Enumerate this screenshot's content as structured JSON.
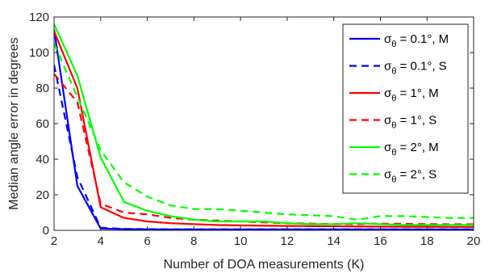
{
  "chart_data": {
    "type": "line",
    "title": "",
    "xlabel": "Number of DOA measurements (K)",
    "ylabel": "Median angle error in degrees",
    "xlim": [
      2,
      20
    ],
    "ylim": [
      0,
      120
    ],
    "xticks": [
      2,
      4,
      6,
      8,
      10,
      12,
      14,
      16,
      18,
      20
    ],
    "yticks": [
      0,
      20,
      40,
      60,
      80,
      100,
      120
    ],
    "grid": false,
    "legend_position": "top-right",
    "x": [
      2,
      3,
      4,
      5,
      6,
      7,
      8,
      9,
      10,
      11,
      12,
      13,
      14,
      15,
      16,
      17,
      18,
      19,
      20
    ],
    "series": [
      {
        "name": "σθ = 0.1°, M",
        "legend_sym": "σ",
        "legend_sub": "θ",
        "legend_rest": " = 0.1°, M",
        "color": "#0000ff",
        "dash": "solid",
        "values": [
          113,
          25,
          1,
          0.7,
          0.6,
          0.5,
          0.5,
          0.5,
          0.5,
          0.5,
          0.5,
          0.5,
          0.5,
          0.5,
          0.5,
          0.5,
          0.5,
          0.5,
          0.5
        ]
      },
      {
        "name": "σθ = 0.1°, S",
        "legend_sym": "σ",
        "legend_sub": "θ",
        "legend_rest": " = 0.1°, S",
        "color": "#0000ff",
        "dash": "dashed",
        "values": [
          93,
          30,
          1.5,
          0.8,
          0.7,
          0.6,
          0.6,
          0.6,
          0.6,
          0.6,
          0.6,
          0.6,
          0.6,
          0.6,
          0.6,
          0.6,
          0.6,
          0.6,
          0.6
        ]
      },
      {
        "name": "σθ = 1°, M",
        "legend_sym": "σ",
        "legend_sub": "θ",
        "legend_rest": " = 1°, M",
        "color": "#ff0000",
        "dash": "solid",
        "values": [
          112,
          80,
          13,
          7,
          5,
          4,
          3.5,
          3,
          2.8,
          2.6,
          2.5,
          2.4,
          2.3,
          2.2,
          2.1,
          2.0,
          2.0,
          1.9,
          1.9
        ]
      },
      {
        "name": "σθ = 1°, S",
        "legend_sym": "σ",
        "legend_sub": "θ",
        "legend_rest": " = 1°, S",
        "color": "#ff0000",
        "dash": "dashed",
        "values": [
          88,
          72,
          15,
          10,
          9,
          7,
          6,
          5.5,
          5,
          4.5,
          4,
          3.8,
          3.5,
          3.5,
          3.8,
          3.6,
          3.5,
          3.4,
          3.4
        ]
      },
      {
        "name": "σθ = 2°, M",
        "legend_sym": "σ",
        "legend_sub": "θ",
        "legend_rest": " = 2°, M",
        "color": "#00ff00",
        "dash": "solid",
        "values": [
          116,
          87,
          41,
          16,
          11,
          8,
          6,
          5,
          5,
          5,
          4,
          3.5,
          3.5,
          4,
          3.5,
          3,
          3,
          3,
          3
        ]
      },
      {
        "name": "σθ = 2°, S",
        "legend_sym": "σ",
        "legend_sub": "θ",
        "legend_rest": " = 2°, S",
        "color": "#00ff00",
        "dash": "dashed",
        "values": [
          105,
          75,
          45,
          27,
          19,
          14,
          12,
          12,
          11,
          10,
          9,
          8.5,
          8,
          6,
          8,
          8,
          7.5,
          7,
          7
        ]
      }
    ]
  }
}
